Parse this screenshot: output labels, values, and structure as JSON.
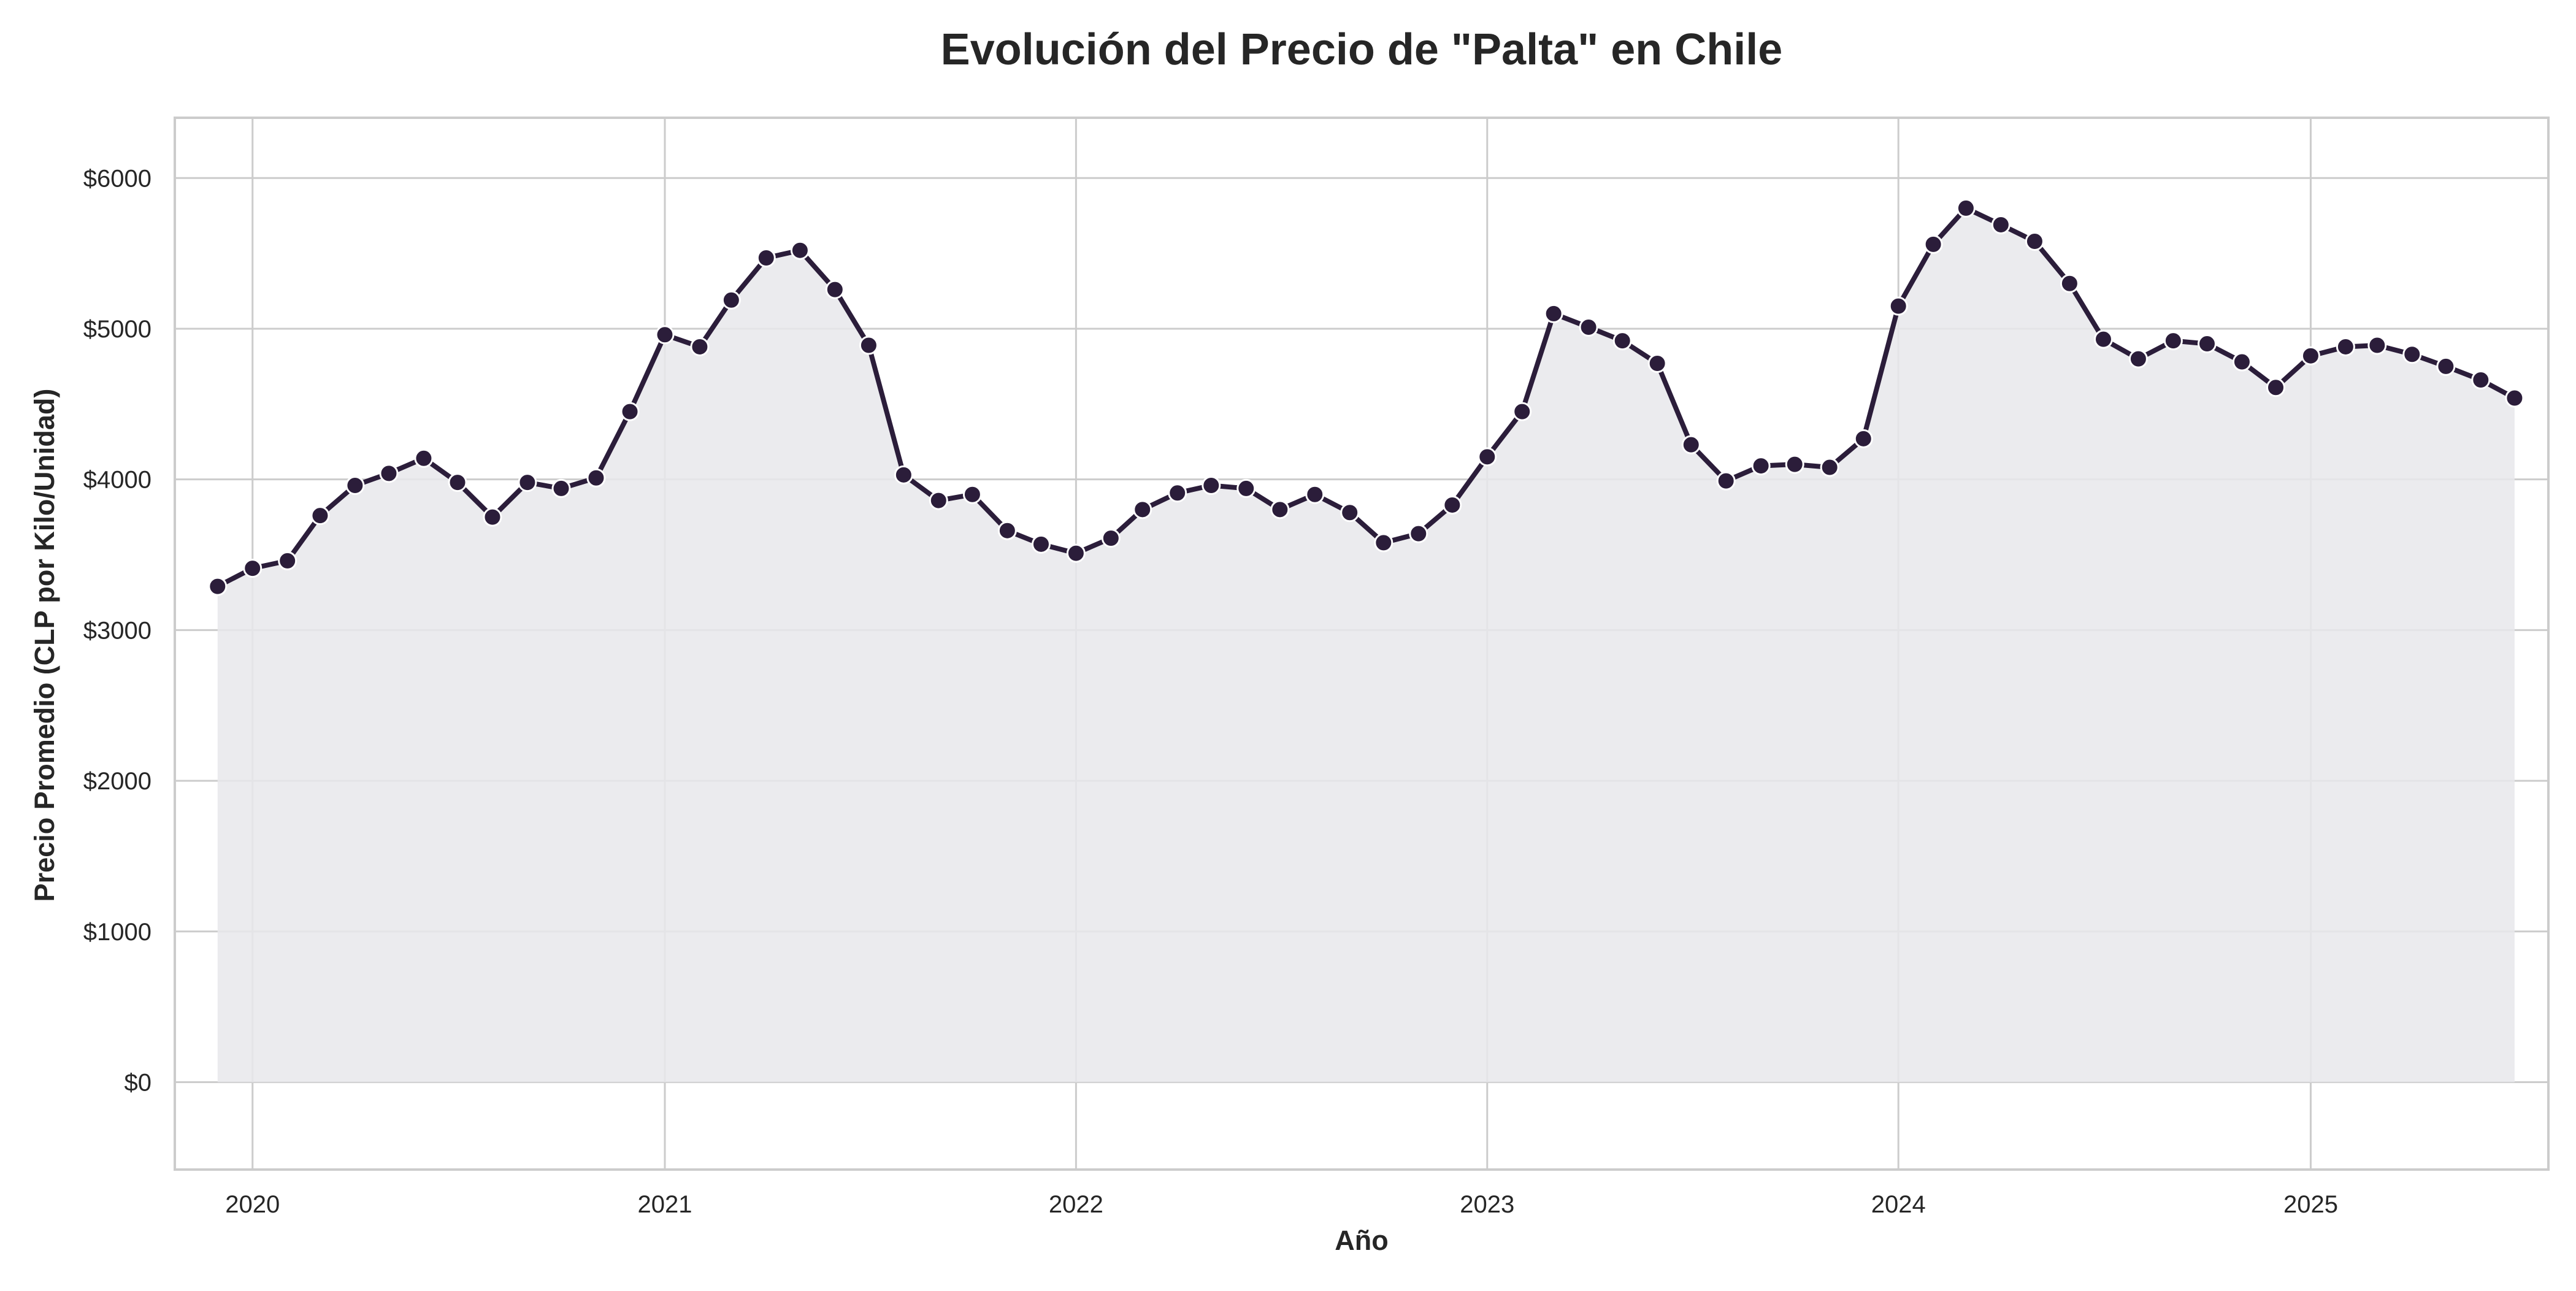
{
  "chart_data": {
    "type": "area",
    "title": "Evolución del Precio de \"Palta\" en Chile",
    "xlabel": "Año",
    "ylabel": "Precio Promedio (CLP por Kilo/Unidad)",
    "x_ticks": [
      "2020",
      "2021",
      "2022",
      "2023",
      "2024",
      "2025"
    ],
    "y_ticks": [
      "$0",
      "$1000",
      "$2000",
      "$3000",
      "$4000",
      "$5000",
      "$6000"
    ],
    "y_tick_values": [
      0,
      1000,
      2000,
      3000,
      4000,
      5000,
      6000
    ],
    "xlim": [
      "2019-10-24",
      "2025-07-31"
    ],
    "ylim": [
      -580,
      6400
    ],
    "grid": true,
    "line_color": "#2b1d3a",
    "fill_color": "#e8e8eb",
    "series": [
      {
        "x": [
          "2019-12-01",
          "2020-01-01",
          "2020-02-01",
          "2020-03-01",
          "2020-04-01",
          "2020-05-01",
          "2020-06-01",
          "2020-07-01",
          "2020-08-01",
          "2020-09-01",
          "2020-10-01",
          "2020-11-01",
          "2020-12-01",
          "2021-01-01",
          "2021-02-01",
          "2021-03-01",
          "2021-04-01",
          "2021-05-01",
          "2021-06-01",
          "2021-07-01",
          "2021-08-01",
          "2021-09-01",
          "2021-10-01",
          "2021-11-01",
          "2021-12-01",
          "2022-01-01",
          "2022-02-01",
          "2022-03-01",
          "2022-04-01",
          "2022-05-01",
          "2022-06-01",
          "2022-07-01",
          "2022-08-01",
          "2022-09-01",
          "2022-10-01",
          "2022-11-01",
          "2022-12-01",
          "2023-01-01",
          "2023-02-01",
          "2023-03-01",
          "2023-04-01",
          "2023-05-01",
          "2023-06-01",
          "2023-07-01",
          "2023-08-01",
          "2023-09-01",
          "2023-10-01",
          "2023-11-01",
          "2023-12-01",
          "2024-01-01",
          "2024-02-01",
          "2024-03-01",
          "2024-04-01",
          "2024-05-01",
          "2024-06-01",
          "2024-07-01",
          "2024-08-01",
          "2024-09-01",
          "2024-10-01",
          "2024-11-01",
          "2024-12-01",
          "2025-01-01",
          "2025-02-01",
          "2025-03-01",
          "2025-04-01",
          "2025-05-01",
          "2025-06-01",
          "2025-07-01"
        ],
        "values": [
          3290,
          3410,
          3460,
          3760,
          3960,
          4040,
          4140,
          3980,
          3750,
          3980,
          3940,
          4010,
          4450,
          4960,
          4880,
          5190,
          5470,
          5520,
          5260,
          4890,
          4030,
          3860,
          3900,
          3660,
          3570,
          3510,
          3610,
          3800,
          3910,
          3960,
          3940,
          3800,
          3900,
          3780,
          3580,
          3640,
          3830,
          4150,
          4450,
          5100,
          5010,
          4920,
          4770,
          4230,
          3990,
          4090,
          4100,
          4080,
          4270,
          5150,
          5560,
          5800,
          5690,
          5580,
          5300,
          4930,
          4800,
          4920,
          4900,
          4780,
          4610,
          4820,
          4880,
          4890,
          4830,
          4750,
          4660,
          4540
        ]
      }
    ]
  }
}
